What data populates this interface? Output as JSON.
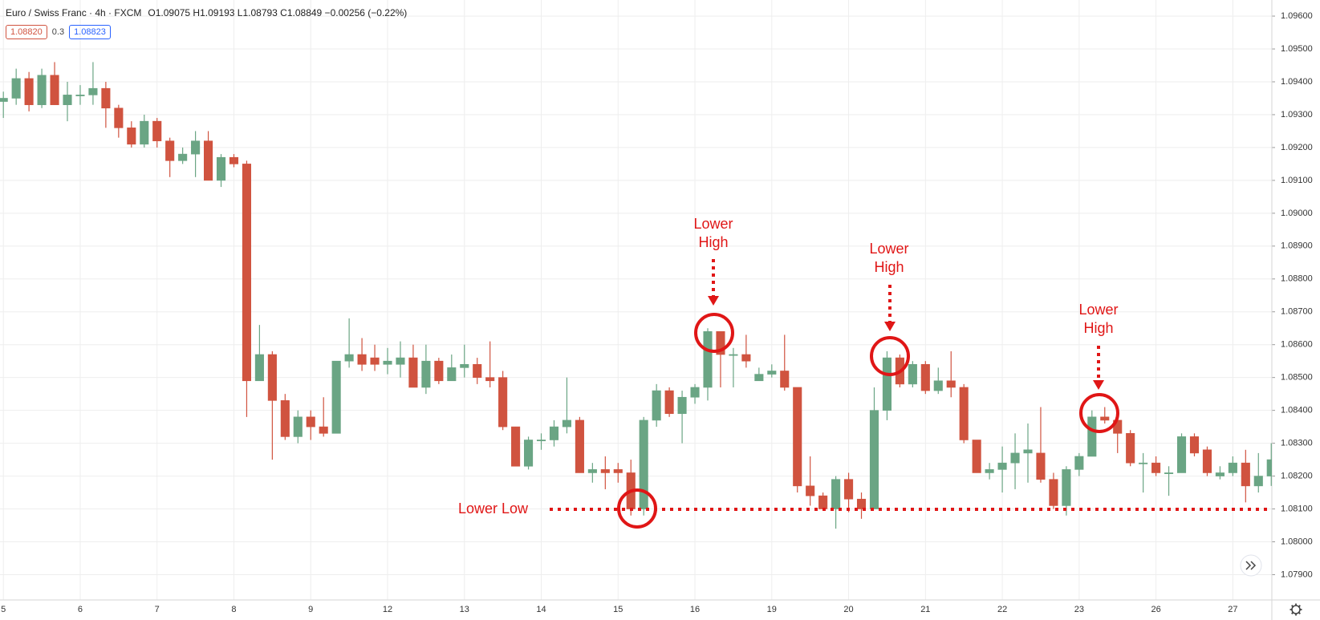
{
  "chart_data": {
    "type": "candlestick",
    "title": "Euro / Swiss Franc · 4h · FXCM",
    "subtitle": "O1.09075 H1.09193 L1.08793 C1.08849 −0.00256 (−0.22%)",
    "price_boxes": [
      "1.08820",
      "0.3",
      "1.08823"
    ],
    "annotations": [
      "Lower High",
      "Lower High",
      "Lower High",
      "Lower Low"
    ],
    "up_color": "#6aa584",
    "down_color": "#d0533f",
    "annotation_color": "#e01616",
    "grid": true,
    "categories": [
      "5",
      null,
      null,
      null,
      null,
      null,
      "6",
      null,
      null,
      null,
      null,
      null,
      "7",
      null,
      null,
      null,
      null,
      null,
      "8",
      null,
      null,
      null,
      null,
      null,
      "9",
      null,
      null,
      null,
      null,
      null,
      "12",
      null,
      null,
      null,
      null,
      null,
      "13",
      null,
      null,
      null,
      null,
      null,
      "14",
      null,
      null,
      null,
      null,
      null,
      "15",
      null,
      null,
      null,
      null,
      null,
      "16",
      null,
      null,
      null,
      null,
      null,
      "19",
      null,
      null,
      null,
      null,
      null,
      "20",
      null,
      null,
      null,
      null,
      null,
      "21",
      null,
      null,
      null,
      null,
      null,
      "22",
      null,
      null,
      null,
      null,
      null,
      "23",
      null,
      null,
      null,
      null,
      null,
      "26",
      null,
      null,
      null,
      null,
      null,
      "27",
      null,
      null,
      null
    ],
    "open": [
      1.0934,
      1.0935,
      1.0941,
      1.0933,
      1.0942,
      1.0933,
      1.0936,
      1.0936,
      1.0938,
      1.0932,
      1.0926,
      1.0921,
      1.0928,
      1.0922,
      1.0916,
      1.0918,
      1.0922,
      1.091,
      1.0917,
      1.0915,
      1.0849,
      1.0857,
      1.0843,
      1.0832,
      1.0838,
      1.0835,
      1.0833,
      1.0855,
      1.0857,
      1.0856,
      1.0854,
      1.0854,
      1.0856,
      1.0847,
      1.0855,
      1.0849,
      1.0853,
      1.0854,
      1.085,
      1.085,
      1.0835,
      1.0823,
      1.0831,
      1.0831,
      1.0835,
      1.0837,
      1.0821,
      1.0822,
      1.0822,
      1.0821,
      1.081,
      1.0837,
      1.0846,
      1.0839,
      1.0844,
      1.0847,
      1.0864,
      1.0857,
      1.0857,
      1.0849,
      1.0851,
      1.0852,
      1.0847,
      1.0817,
      1.0814,
      1.081,
      1.0819,
      1.0813,
      1.081,
      1.084,
      1.0856,
      1.0848,
      1.0854,
      1.0846,
      1.0849,
      1.0847,
      1.0831,
      1.0821,
      1.0822,
      1.0824,
      1.0827,
      1.0827,
      1.0819,
      1.0811,
      1.0822,
      1.0826,
      1.0838,
      1.0837,
      1.0833,
      1.0824,
      1.0824,
      1.0821,
      1.0821,
      1.0832,
      1.0828,
      1.082,
      1.0821,
      1.0824,
      1.0817,
      1.082
    ],
    "high": [
      1.0937,
      1.0944,
      1.0943,
      1.0944,
      1.0946,
      1.094,
      1.0939,
      1.0946,
      1.094,
      1.0933,
      1.0928,
      1.093,
      1.0929,
      1.0923,
      1.092,
      1.0925,
      1.0925,
      1.0918,
      1.0918,
      1.0916,
      1.0866,
      1.0858,
      1.0845,
      1.084,
      1.084,
      1.0844,
      1.0855,
      1.0868,
      1.0862,
      1.086,
      1.0859,
      1.0861,
      1.086,
      1.086,
      1.0856,
      1.0857,
      1.086,
      1.0856,
      1.0861,
      1.0852,
      1.0835,
      1.0832,
      1.0833,
      1.0837,
      1.085,
      1.0838,
      1.0824,
      1.0826,
      1.0824,
      1.0825,
      1.0838,
      1.0848,
      1.0847,
      1.0846,
      1.0848,
      1.0865,
      1.0864,
      1.0859,
      1.0863,
      1.0853,
      1.0854,
      1.0863,
      1.0847,
      1.0826,
      1.0815,
      1.082,
      1.0821,
      1.0815,
      1.0847,
      1.0858,
      1.0857,
      1.0855,
      1.0855,
      1.0853,
      1.0858,
      1.0848,
      1.0831,
      1.0824,
      1.0829,
      1.0833,
      1.0836,
      1.0841,
      1.0821,
      1.0823,
      1.0827,
      1.084,
      1.0841,
      1.084,
      1.0834,
      1.0827,
      1.0826,
      1.0823,
      1.0833,
      1.0833,
      1.0829,
      1.0823,
      1.0826,
      1.0828,
      1.0827,
      1.083
    ],
    "low": [
      1.0929,
      1.0933,
      1.0931,
      1.0932,
      1.0933,
      1.0928,
      1.0933,
      1.0933,
      1.0926,
      1.0923,
      1.092,
      1.092,
      1.092,
      1.0911,
      1.0915,
      1.0911,
      1.091,
      1.0908,
      1.0914,
      1.0838,
      1.0849,
      1.0825,
      1.0831,
      1.083,
      1.0831,
      1.0832,
      1.0833,
      1.0853,
      1.0852,
      1.0852,
      1.0851,
      1.085,
      1.0847,
      1.0845,
      1.0848,
      1.0849,
      1.085,
      1.0848,
      1.0847,
      1.0834,
      1.0823,
      1.0822,
      1.0828,
      1.0829,
      1.0833,
      1.0821,
      1.0818,
      1.0816,
      1.0818,
      1.0808,
      1.0808,
      1.0835,
      1.0838,
      1.083,
      1.0842,
      1.0843,
      1.0847,
      1.0847,
      1.0853,
      1.0849,
      1.085,
      1.0846,
      1.0815,
      1.0811,
      1.081,
      1.0804,
      1.0809,
      1.0807,
      1.081,
      1.0837,
      1.0847,
      1.0847,
      1.0845,
      1.0845,
      1.0844,
      1.083,
      1.0821,
      1.0819,
      1.0815,
      1.0816,
      1.0818,
      1.0818,
      1.081,
      1.0808,
      1.082,
      1.0826,
      1.0836,
      1.0827,
      1.0823,
      1.0815,
      1.082,
      1.0814,
      1.0821,
      1.0826,
      1.082,
      1.0819,
      1.082,
      1.0812,
      1.0815,
      1.0817
    ],
    "close": [
      1.0935,
      1.0941,
      1.0933,
      1.0942,
      1.0933,
      1.0936,
      1.0936,
      1.0938,
      1.0932,
      1.0926,
      1.0921,
      1.0928,
      1.0922,
      1.0916,
      1.0918,
      1.0922,
      1.091,
      1.0917,
      1.0915,
      1.0849,
      1.0857,
      1.0843,
      1.0832,
      1.0838,
      1.0835,
      1.0833,
      1.0855,
      1.0857,
      1.0854,
      1.0854,
      1.0855,
      1.0856,
      1.0847,
      1.0855,
      1.0849,
      1.0853,
      1.0854,
      1.085,
      1.0849,
      1.0835,
      1.0823,
      1.0831,
      1.0831,
      1.0835,
      1.0837,
      1.0821,
      1.0822,
      1.0821,
      1.0821,
      1.081,
      1.0837,
      1.0846,
      1.0839,
      1.0844,
      1.0847,
      1.0864,
      1.0857,
      1.0857,
      1.0855,
      1.0851,
      1.0852,
      1.0847,
      1.0817,
      1.0814,
      1.081,
      1.0819,
      1.0813,
      1.081,
      1.084,
      1.0856,
      1.0848,
      1.0854,
      1.0846,
      1.0849,
      1.0847,
      1.0831,
      1.0821,
      1.0822,
      1.0824,
      1.0827,
      1.0828,
      1.0819,
      1.0811,
      1.0822,
      1.0826,
      1.0838,
      1.0837,
      1.0833,
      1.0824,
      1.0824,
      1.0821,
      1.0821,
      1.0832,
      1.0827,
      1.0821,
      1.0821,
      1.0824,
      1.0817,
      1.082,
      1.0825
    ],
    "ylim": [
      1.07823,
      1.09649
    ],
    "yticks": [
      {
        "value": 1.096,
        "label": "1.09600"
      },
      {
        "value": 1.095,
        "label": "1.09500"
      },
      {
        "value": 1.094,
        "label": "1.09400"
      },
      {
        "value": 1.093,
        "label": "1.09300"
      },
      {
        "value": 1.092,
        "label": "1.09200"
      },
      {
        "value": 1.091,
        "label": "1.09100"
      },
      {
        "value": 1.09,
        "label": "1.09000"
      },
      {
        "value": 1.089,
        "label": "1.08900"
      },
      {
        "value": 1.088,
        "label": "1.08800"
      },
      {
        "value": 1.087,
        "label": "1.08700"
      },
      {
        "value": 1.086,
        "label": "1.08600"
      },
      {
        "value": 1.085,
        "label": "1.08500"
      },
      {
        "value": 1.084,
        "label": "1.08400"
      },
      {
        "value": 1.083,
        "label": "1.08300"
      },
      {
        "value": 1.082,
        "label": "1.08200"
      },
      {
        "value": 1.081,
        "label": "1.08100"
      },
      {
        "value": 1.08,
        "label": "1.08000"
      },
      {
        "value": 1.079,
        "label": "1.07900"
      }
    ]
  }
}
